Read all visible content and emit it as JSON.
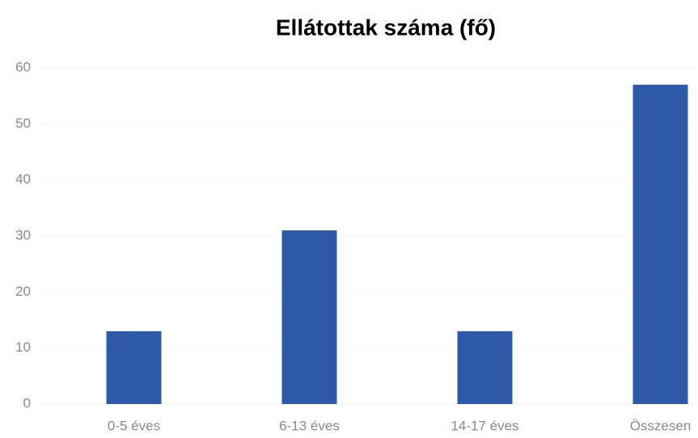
{
  "chart_data": {
    "type": "bar",
    "title": "Ellátottak száma (fő)",
    "categories": [
      "0-5 éves",
      "6-13 éves",
      "14-17 éves",
      "Összesen"
    ],
    "values": [
      13,
      31,
      13,
      57
    ],
    "color": "#2f5aa8",
    "ylim": [
      0,
      60
    ],
    "yticks": [
      0,
      10,
      20,
      30,
      40,
      50,
      60
    ],
    "grid": true
  }
}
